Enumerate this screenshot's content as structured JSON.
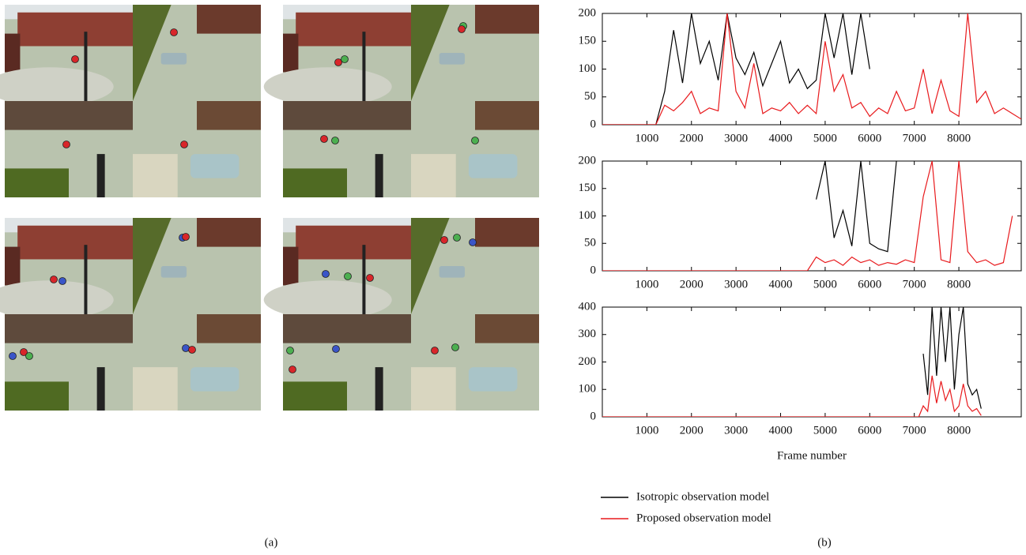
{
  "panel_labels": [
    "(a)",
    "(b)"
  ],
  "chart_data": [
    {
      "type": "line",
      "x": [
        0,
        200,
        400,
        600,
        800,
        1000,
        1200,
        1400,
        1600,
        1800,
        2000,
        2200,
        2400,
        2600,
        2800,
        3000,
        3200,
        3400,
        3600,
        3800,
        4000,
        4200,
        4400,
        4600,
        4800,
        5000,
        5200,
        5400,
        5600,
        5800,
        6000,
        6200,
        6400,
        6600,
        6800,
        7000,
        7200,
        7400,
        7600,
        7800,
        8000,
        8200,
        8400,
        8600,
        8800,
        9000,
        9200,
        9400
      ],
      "series": [
        {
          "name": "Isotropic observation model",
          "color": "#000000",
          "values": [
            0,
            0,
            0,
            0,
            0,
            0,
            0,
            60,
            170,
            75,
            200,
            110,
            150,
            80,
            200,
            120,
            90,
            130,
            70,
            110,
            150,
            75,
            100,
            65,
            80,
            200,
            120,
            200,
            90,
            200,
            100,
            null,
            null,
            null,
            null,
            null,
            null,
            null,
            null,
            null,
            null,
            null,
            null,
            null,
            null,
            null,
            null,
            null
          ]
        },
        {
          "name": "Proposed observation model",
          "color": "#e8191c",
          "values": [
            0,
            0,
            0,
            0,
            0,
            0,
            0,
            35,
            25,
            40,
            60,
            20,
            30,
            25,
            200,
            60,
            30,
            110,
            20,
            30,
            25,
            40,
            20,
            35,
            20,
            150,
            60,
            90,
            30,
            40,
            15,
            30,
            20,
            60,
            25,
            30,
            100,
            20,
            80,
            25,
            15,
            200,
            40,
            60,
            20,
            30,
            20,
            10
          ]
        }
      ],
      "xlim": [
        0,
        9400
      ],
      "xticks": [
        1000,
        2000,
        3000,
        4000,
        5000,
        6000,
        7000,
        8000
      ],
      "ylim": [
        0,
        200
      ],
      "yticks": [
        0,
        50,
        100,
        150,
        200
      ]
    },
    {
      "type": "line",
      "x": [
        0,
        200,
        400,
        600,
        800,
        1000,
        1200,
        1400,
        1600,
        1800,
        2000,
        2200,
        2400,
        2600,
        2800,
        3000,
        3200,
        3400,
        3600,
        3800,
        4000,
        4200,
        4400,
        4600,
        4800,
        5000,
        5200,
        5400,
        5600,
        5800,
        6000,
        6200,
        6400,
        6600,
        6800,
        7000,
        7200,
        7400,
        7600,
        7800,
        8000,
        8200,
        8400,
        8600,
        8800,
        9000,
        9200,
        9400
      ],
      "series": [
        {
          "color": "#000000",
          "values": [
            null,
            null,
            null,
            null,
            null,
            null,
            null,
            null,
            null,
            null,
            null,
            null,
            null,
            null,
            null,
            null,
            null,
            null,
            null,
            null,
            null,
            null,
            null,
            null,
            130,
            200,
            60,
            110,
            45,
            200,
            50,
            40,
            35,
            200,
            null,
            null,
            null,
            null,
            null,
            null,
            null,
            null,
            null,
            null,
            null,
            null,
            null,
            null
          ]
        },
        {
          "color": "#e8191c",
          "values": [
            0,
            0,
            0,
            0,
            0,
            0,
            0,
            0,
            0,
            0,
            0,
            0,
            0,
            0,
            0,
            0,
            0,
            0,
            0,
            0,
            0,
            0,
            0,
            0,
            25,
            15,
            20,
            10,
            25,
            15,
            20,
            10,
            15,
            12,
            20,
            15,
            135,
            200,
            20,
            15,
            200,
            35,
            15,
            20,
            10,
            15,
            100,
            null
          ]
        }
      ],
      "xlim": [
        0,
        9400
      ],
      "xticks": [
        1000,
        2000,
        3000,
        4000,
        5000,
        6000,
        7000,
        8000
      ],
      "ylim": [
        0,
        200
      ],
      "yticks": [
        0,
        50,
        100,
        150,
        200
      ]
    },
    {
      "type": "line",
      "xlabel": "Frame number",
      "x": [
        0,
        7100,
        7200,
        7300,
        7400,
        7500,
        7600,
        7700,
        7800,
        7900,
        8000,
        8100,
        8200,
        8300,
        8400,
        8500
      ],
      "series": [
        {
          "color": "#000000",
          "values": [
            null,
            null,
            230,
            80,
            400,
            150,
            400,
            200,
            400,
            100,
            300,
            400,
            120,
            80,
            100,
            30
          ]
        },
        {
          "color": "#e8191c",
          "values": [
            0,
            0,
            40,
            20,
            150,
            50,
            130,
            60,
            100,
            20,
            40,
            120,
            40,
            20,
            30,
            5
          ]
        }
      ],
      "xlim": [
        0,
        9400
      ],
      "xticks": [
        1000,
        2000,
        3000,
        4000,
        5000,
        6000,
        7000,
        8000
      ],
      "ylim": [
        0,
        400
      ],
      "yticks": [
        0,
        100,
        200,
        300,
        400
      ]
    }
  ]
}
